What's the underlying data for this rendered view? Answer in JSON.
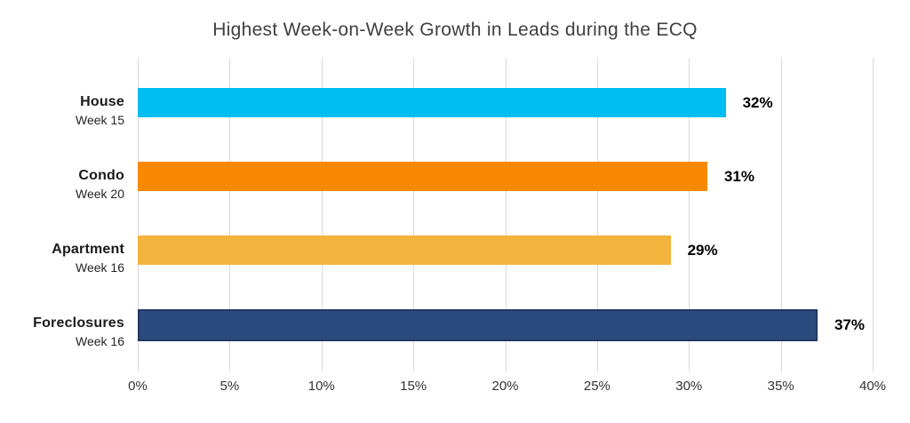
{
  "chart_data": {
    "type": "bar",
    "orientation": "horizontal",
    "title": "Highest Week-on-Week Growth in Leads during the ECQ",
    "categories": [
      "House",
      "Condo",
      "Apartment",
      "Foreclosures"
    ],
    "sublabels": [
      "Week 15",
      "Week 20",
      "Week 16",
      "Week 16"
    ],
    "values": [
      32,
      31,
      29,
      37
    ],
    "value_labels": [
      "32%",
      "31%",
      "29%",
      "37%"
    ],
    "bar_colors": [
      "#00bdf2",
      "#f98900",
      "#f3b33d",
      "#2b4a7e"
    ],
    "bar_border_colors": [
      null,
      null,
      null,
      "#1f3864"
    ],
    "xlabel": "",
    "ylabel": "",
    "xlim": [
      0,
      40
    ],
    "x_ticks": [
      0,
      5,
      10,
      15,
      20,
      25,
      30,
      35,
      40
    ],
    "x_tick_labels": [
      "0%",
      "5%",
      "10%",
      "15%",
      "20%",
      "25%",
      "30%",
      "35%",
      "40%"
    ],
    "grid": "vertical-only",
    "gridline_color": "#d9d9d9",
    "legend": "none",
    "title_color": "#404040",
    "label_color": "#1a1a1a",
    "value_label_color": "#000000"
  }
}
